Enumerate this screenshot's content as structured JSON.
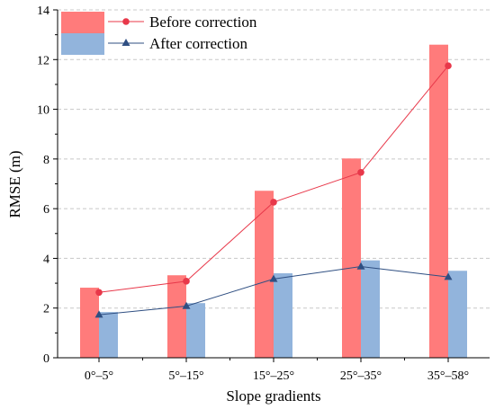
{
  "chart_data": {
    "type": "bar",
    "xlabel": "Slope gradients",
    "ylabel": "RMSE (m)",
    "ylim": [
      0,
      14
    ],
    "yticks": [
      0,
      2,
      4,
      6,
      8,
      10,
      12,
      14
    ],
    "grid": "horizontal dashed",
    "legend_position": "top-left",
    "categories": [
      "0°–5°",
      "5°–15°",
      "15°–25°",
      "25°–35°",
      "35°–58°"
    ],
    "series": [
      {
        "name": "Before correction",
        "bar_values": [
          2.82,
          3.32,
          6.72,
          8.02,
          12.6
        ],
        "line_values": [
          2.63,
          3.08,
          6.26,
          7.46,
          11.75
        ],
        "bar_color": "#ff7b7b",
        "line_color": "#e8384a",
        "marker": "circle"
      },
      {
        "name": "After correction",
        "bar_values": [
          1.84,
          2.2,
          3.4,
          3.92,
          3.5
        ],
        "line_values": [
          1.73,
          2.08,
          3.17,
          3.67,
          3.25
        ],
        "bar_color": "#92b4dc",
        "line_color": "#2f4f82",
        "marker": "triangle"
      }
    ]
  }
}
